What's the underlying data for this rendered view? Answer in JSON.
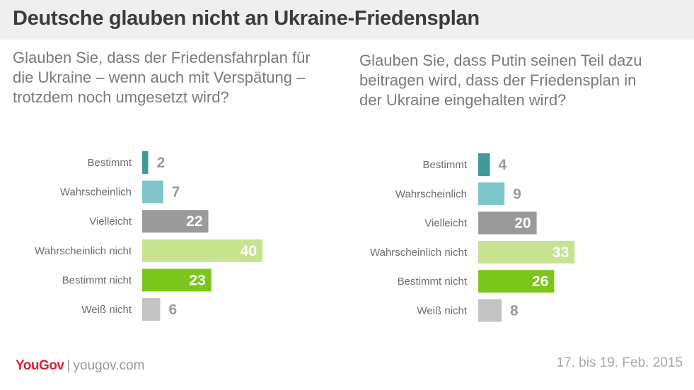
{
  "title": "Deutsche glauben nicht an Ukraine-Friedensplan",
  "footer": {
    "logo": "YouGov",
    "separator": "|",
    "url": "yougov.com",
    "date": "17. bis 19. Feb. 2015"
  },
  "colors": {
    "Bestimmt": "#3f9a9b",
    "Wahrscheinlich": "#7ec6c9",
    "Vielleicht": "#9a9a9a",
    "Wahrscheinlich nicht": "#c7e38f",
    "Bestimmt nicht": "#7cc61b",
    "Weiß nicht": "#c3c3c3",
    "label_dark": "#6e6e6e",
    "value_outside": "#9a9a9a",
    "value_inside": "#ffffff"
  },
  "chart_data": [
    {
      "type": "bar",
      "orientation": "horizontal",
      "question": "Glauben Sie, dass der Friedensfahrplan für\ndie Ukraine – wenn auch mit Verspätung –\ntrotzdem noch umgesetzt wird?",
      "categories": [
        "Bestimmt",
        "Wahrscheinlich",
        "Vielleicht",
        "Wahrscheinlich nicht",
        "Bestimmt nicht",
        "Weiß nicht"
      ],
      "values": [
        2,
        7,
        22,
        40,
        23,
        6
      ]
    },
    {
      "type": "bar",
      "orientation": "horizontal",
      "question": "Glauben Sie, dass Putin seinen Teil dazu\nbeitragen wird, dass der Friedensplan in\nder Ukraine eingehalten wird?",
      "categories": [
        "Bestimmt",
        "Wahrscheinlich",
        "Vielleicht",
        "Wahrscheinlich nicht",
        "Bestimmt nicht",
        "Weiß nicht"
      ],
      "values": [
        4,
        9,
        20,
        33,
        26,
        8
      ]
    }
  ]
}
